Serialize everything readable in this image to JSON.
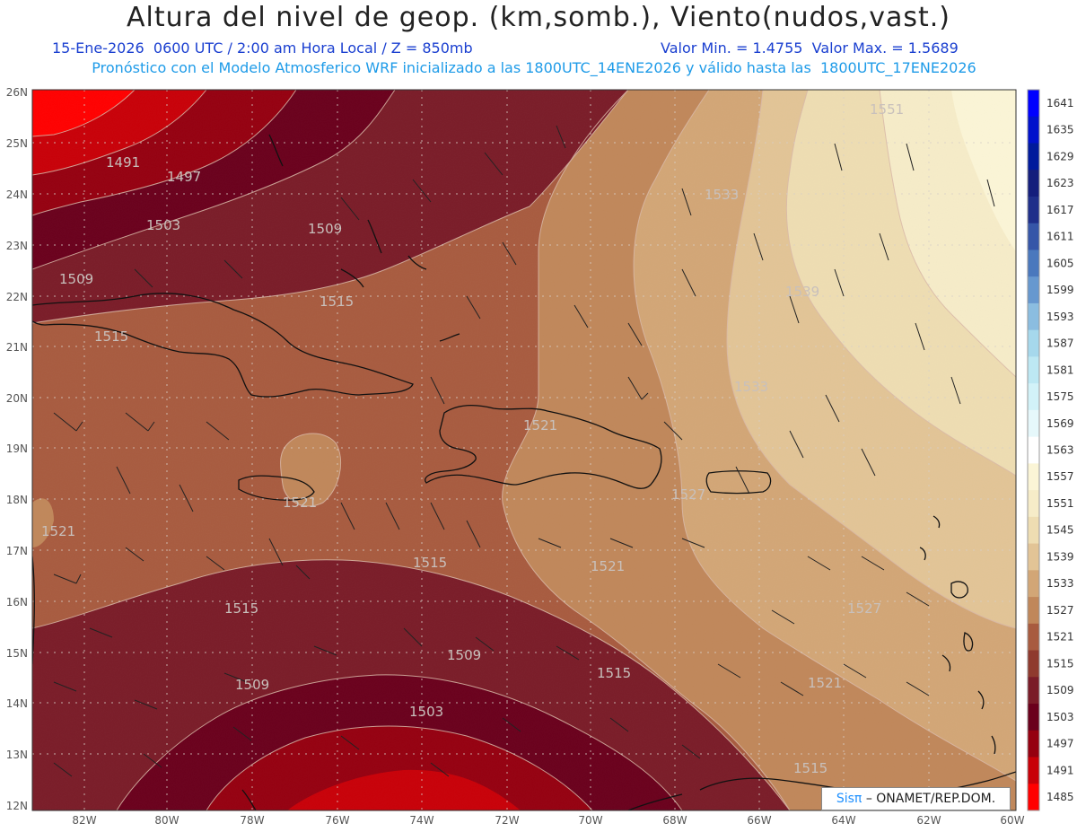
{
  "header": {
    "title": "Altura del nivel de geop. (km,somb.), Viento(nudos,vast.)",
    "date_line": "15-Ene-2026  0600 UTC / 2:00 am Hora Local / Z = 850mb",
    "minmax_line": "Valor Min. = 1.4755  Valor Max. = 1.5689",
    "model_line": "Pronóstico con el Modelo Atmosferico WRF inicializado a las 1800UTC_14ENE2026 y válido hasta las  1800UTC_17ENE2026"
  },
  "map": {
    "lat_labels": [
      "26N",
      "25N",
      "24N",
      "23N",
      "22N",
      "21N",
      "20N",
      "19N",
      "18N",
      "17N",
      "16N",
      "15N",
      "14N",
      "13N",
      "12N"
    ],
    "lon_labels": [
      "82W",
      "80W",
      "78W",
      "76W",
      "74W",
      "72W",
      "70W",
      "68W",
      "66W",
      "64W",
      "62W",
      "60W"
    ],
    "contour_labels": [
      {
        "text": "1491"
      },
      {
        "text": "1497"
      },
      {
        "text": "1503"
      },
      {
        "text": "1509"
      },
      {
        "text": "1509"
      },
      {
        "text": "1515"
      },
      {
        "text": "1515"
      },
      {
        "text": "1521"
      },
      {
        "text": "1521"
      },
      {
        "text": "1521"
      },
      {
        "text": "1515"
      },
      {
        "text": "1515"
      },
      {
        "text": "1509"
      },
      {
        "text": "1509"
      },
      {
        "text": "1503"
      },
      {
        "text": "1515"
      },
      {
        "text": "1521"
      },
      {
        "text": "1527"
      },
      {
        "text": "1527"
      },
      {
        "text": "1533"
      },
      {
        "text": "1533"
      },
      {
        "text": "1539"
      },
      {
        "text": "1551"
      },
      {
        "text": "1515"
      },
      {
        "text": "1521"
      }
    ]
  },
  "colorbar": {
    "labels": [
      "1641",
      "1635",
      "1629",
      "1623",
      "1617",
      "1611",
      "1605",
      "1599",
      "1593",
      "1587",
      "1581",
      "1575",
      "1569",
      "1563",
      "1557",
      "1551",
      "1545",
      "1539",
      "1533",
      "1527",
      "1521",
      "1515",
      "1509",
      "1503",
      "1497",
      "1491",
      "1485"
    ],
    "colors": [
      "#0000ff",
      "#0011cc",
      "#001a9c",
      "#141e7c",
      "#1f2f8a",
      "#3656a8",
      "#4a78bd",
      "#6798cf",
      "#8bbde0",
      "#a6d8ec",
      "#bde8f3",
      "#d2f2f8",
      "#e6f8fb",
      "#ffffff",
      "#fbf5d6",
      "#f6ecc8",
      "#eeddb2",
      "#e2c496",
      "#d2a676",
      "#c0875a",
      "#a85b3f",
      "#8f3a2e",
      "#7a1c28",
      "#6a001c",
      "#950010",
      "#c80008",
      "#ff0000"
    ]
  },
  "credit": {
    "brand": "Sisπ",
    "text": "– ONAMET/REP.DOM."
  }
}
